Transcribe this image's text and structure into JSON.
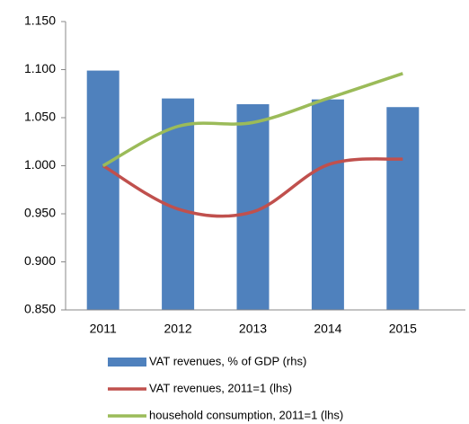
{
  "chart_data": {
    "type": "bar-line",
    "categories": [
      "2011",
      "2012",
      "2013",
      "2014",
      "2015"
    ],
    "series": [
      {
        "name": "VAT revenues, % of GDP (rhs)",
        "type": "bar",
        "color": "#4f81bd",
        "values": [
          1.099,
          1.07,
          1.064,
          1.069,
          1.061
        ]
      },
      {
        "name": "VAT revenues, 2011=1 (lhs)",
        "type": "line",
        "color": "#c0504d",
        "values": [
          1.0,
          0.955,
          0.952,
          1.001,
          1.007
        ]
      },
      {
        "name": "household consumption, 2011=1 (lhs)",
        "type": "line",
        "color": "#9bbb59",
        "values": [
          1.0,
          1.041,
          1.045,
          1.07,
          1.096
        ]
      }
    ],
    "ylim": [
      0.85,
      1.15
    ],
    "yticks": [
      {
        "value": 0.85,
        "label": "0.850"
      },
      {
        "value": 0.9,
        "label": "0.900"
      },
      {
        "value": 0.95,
        "label": "0.950"
      },
      {
        "value": 1.0,
        "label": "1.000"
      },
      {
        "value": 1.05,
        "label": "1.050"
      },
      {
        "value": 1.1,
        "label": "1.100"
      },
      {
        "value": 1.15,
        "label": "1.150"
      }
    ],
    "legend": "bottom"
  }
}
